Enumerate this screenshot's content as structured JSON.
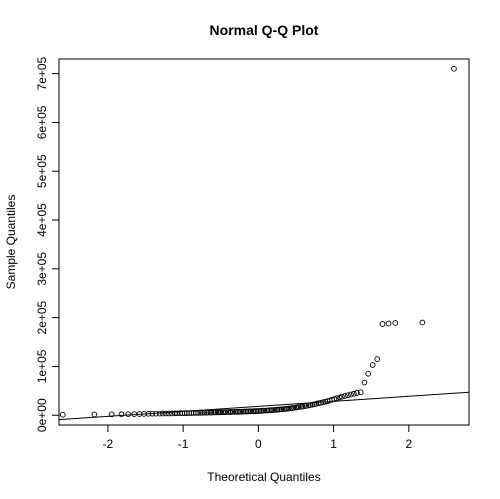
{
  "chart_data": {
    "type": "scatter",
    "title": "Normal Q-Q Plot",
    "xlabel": "Theoretical Quantiles",
    "ylabel": "Sample Quantiles",
    "xlim": [
      -2.65,
      2.8
    ],
    "ylim": [
      -20000,
      730000
    ],
    "x_ticks": [
      -2,
      -1,
      0,
      1,
      2
    ],
    "x_tick_labels": [
      "-2",
      "-1",
      "0",
      "1",
      "2"
    ],
    "y_ticks": [
      0,
      100000,
      200000,
      300000,
      400000,
      500000,
      600000,
      700000
    ],
    "y_tick_labels": [
      "0e+00",
      "1e+05",
      "2e+05",
      "3e+05",
      "4e+05",
      "5e+05",
      "6e+05",
      "7e+05"
    ],
    "grid": false,
    "legend": "none",
    "reference_line": {
      "x": [
        -2.65,
        2.8
      ],
      "y": [
        -9000,
        47000
      ]
    },
    "points": [
      [
        -2.6,
        1000
      ],
      [
        -2.18,
        1500
      ],
      [
        -1.95,
        1800
      ],
      [
        -1.82,
        2000
      ],
      [
        -1.73,
        2200
      ],
      [
        -1.65,
        2400
      ],
      [
        -1.58,
        2600
      ],
      [
        -1.52,
        2800
      ],
      [
        -1.46,
        3000
      ],
      [
        -1.41,
        3200
      ],
      [
        -1.36,
        3300
      ],
      [
        -1.31,
        3400
      ],
      [
        -1.27,
        3500
      ],
      [
        -1.23,
        3600
      ],
      [
        -1.19,
        3700
      ],
      [
        -1.15,
        3800
      ],
      [
        -1.11,
        3900
      ],
      [
        -1.08,
        4000
      ],
      [
        -1.04,
        4100
      ],
      [
        -1.01,
        4200
      ],
      [
        -0.98,
        4300
      ],
      [
        -0.95,
        4400
      ],
      [
        -0.92,
        4500
      ],
      [
        -0.89,
        4600
      ],
      [
        -0.86,
        4700
      ],
      [
        -0.83,
        4800
      ],
      [
        -0.8,
        4900
      ],
      [
        -0.77,
        5000
      ],
      [
        -0.75,
        5100
      ],
      [
        -0.72,
        5200
      ],
      [
        -0.69,
        5300
      ],
      [
        -0.67,
        5400
      ],
      [
        -0.64,
        5500
      ],
      [
        -0.62,
        5600
      ],
      [
        -0.59,
        5700
      ],
      [
        -0.57,
        5800
      ],
      [
        -0.54,
        5900
      ],
      [
        -0.52,
        6000
      ],
      [
        -0.5,
        6100
      ],
      [
        -0.47,
        6200
      ],
      [
        -0.45,
        6300
      ],
      [
        -0.43,
        6400
      ],
      [
        -0.4,
        6500
      ],
      [
        -0.38,
        6600
      ],
      [
        -0.36,
        6700
      ],
      [
        -0.34,
        6800
      ],
      [
        -0.31,
        6900
      ],
      [
        -0.29,
        7000
      ],
      [
        -0.27,
        7100
      ],
      [
        -0.25,
        7200
      ],
      [
        -0.23,
        7300
      ],
      [
        -0.2,
        7500
      ],
      [
        -0.18,
        7600
      ],
      [
        -0.16,
        7700
      ],
      [
        -0.14,
        7800
      ],
      [
        -0.12,
        8000
      ],
      [
        -0.1,
        8100
      ],
      [
        -0.07,
        8200
      ],
      [
        -0.05,
        8400
      ],
      [
        -0.03,
        8500
      ],
      [
        -0.01,
        8700
      ],
      [
        0.01,
        8800
      ],
      [
        0.03,
        9000
      ],
      [
        0.05,
        9200
      ],
      [
        0.07,
        9400
      ],
      [
        0.1,
        9600
      ],
      [
        0.12,
        9800
      ],
      [
        0.14,
        10000
      ],
      [
        0.16,
        10200
      ],
      [
        0.18,
        10500
      ],
      [
        0.2,
        10800
      ],
      [
        0.23,
        11000
      ],
      [
        0.25,
        11300
      ],
      [
        0.27,
        11600
      ],
      [
        0.29,
        11900
      ],
      [
        0.31,
        12200
      ],
      [
        0.34,
        12600
      ],
      [
        0.36,
        13000
      ],
      [
        0.38,
        13400
      ],
      [
        0.4,
        13800
      ],
      [
        0.43,
        14200
      ],
      [
        0.45,
        14700
      ],
      [
        0.47,
        15200
      ],
      [
        0.5,
        15700
      ],
      [
        0.52,
        16200
      ],
      [
        0.54,
        16800
      ],
      [
        0.57,
        17400
      ],
      [
        0.59,
        18000
      ],
      [
        0.62,
        18700
      ],
      [
        0.64,
        19400
      ],
      [
        0.67,
        20100
      ],
      [
        0.69,
        20900
      ],
      [
        0.72,
        21700
      ],
      [
        0.75,
        22600
      ],
      [
        0.77,
        23500
      ],
      [
        0.8,
        24500
      ],
      [
        0.83,
        25500
      ],
      [
        0.86,
        26600
      ],
      [
        0.89,
        27800
      ],
      [
        0.92,
        29000
      ],
      [
        0.95,
        30300
      ],
      [
        0.98,
        31700
      ],
      [
        1.01,
        33200
      ],
      [
        1.04,
        34800
      ],
      [
        1.08,
        36500
      ],
      [
        1.11,
        38000
      ],
      [
        1.15,
        39500
      ],
      [
        1.19,
        41000
      ],
      [
        1.23,
        42500
      ],
      [
        1.27,
        44000
      ],
      [
        1.31,
        45500
      ],
      [
        1.36,
        47000
      ],
      [
        1.41,
        67000
      ],
      [
        1.46,
        85000
      ],
      [
        1.52,
        103000
      ],
      [
        1.58,
        115000
      ],
      [
        1.65,
        187000
      ],
      [
        1.73,
        188000
      ],
      [
        1.82,
        189000
      ],
      [
        2.18,
        190000
      ],
      [
        2.6,
        710000
      ]
    ]
  }
}
